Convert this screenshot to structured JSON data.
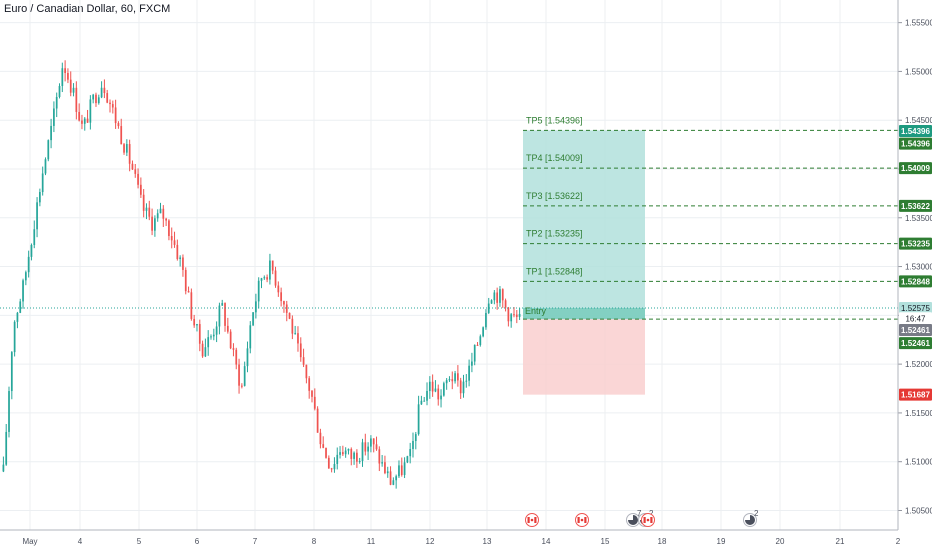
{
  "header": {
    "title": "Euro / Canadian Dollar, 60, FXCM"
  },
  "colors": {
    "up": "#26a69a",
    "down": "#ef5350",
    "grid": "#eceff2",
    "tp_line": "#2e7d32",
    "tp_badge": "#2e7d32",
    "tp_top_badge": "#1e9a80",
    "profit_zone": "#b2e0dc",
    "loss_zone": "#f9cfcf",
    "entry_zone": "#7ccdbf",
    "current_price_line": "#26a69a",
    "stop_badge": "#e53935",
    "gray_badge": "#787b86"
  },
  "chart_data": {
    "type": "candlestick",
    "symbol": "Euro / Canadian Dollar",
    "interval": "60",
    "source": "FXCM",
    "x_ticks": [
      "May",
      "4",
      "5",
      "6",
      "7",
      "8",
      "11",
      "12",
      "13",
      "14",
      "15",
      "18",
      "19",
      "20",
      "21",
      "2"
    ],
    "y_ticks": [
      "1.55500",
      "1.55000",
      "1.54500",
      "1.54000",
      "1.53500",
      "1.53000",
      "1.52500",
      "1.52000",
      "1.51500",
      "1.51000",
      "1.50500"
    ],
    "ylim": [
      1.503,
      1.5565
    ],
    "price_path": [
      1.509,
      1.524,
      1.528,
      1.534,
      1.54,
      1.545,
      1.551,
      1.548,
      1.544,
      1.547,
      1.549,
      1.546,
      1.543,
      1.54,
      1.536,
      1.5345,
      1.5355,
      1.533,
      1.53,
      1.525,
      1.5215,
      1.523,
      1.526,
      1.5215,
      1.5175,
      1.525,
      1.529,
      1.53,
      1.527,
      1.524,
      1.52,
      1.517,
      1.512,
      1.5095,
      1.5115,
      1.5105,
      1.511,
      1.512,
      1.51,
      1.508,
      1.509,
      1.5105,
      1.516,
      1.518,
      1.5165,
      1.519,
      1.5175,
      1.5195,
      1.523,
      1.5275,
      1.527,
      1.525,
      1.5245
    ],
    "position": {
      "entry": 1.52461,
      "entry_label": "Entry",
      "stop": 1.51687,
      "targets": [
        {
          "label": "TP1 [1.52848]",
          "price": 1.52848
        },
        {
          "label": "TP2 [1.53235]",
          "price": 1.53235
        },
        {
          "label": "TP3 [1.53622]",
          "price": 1.53622
        },
        {
          "label": "TP4 [1.54009]",
          "price": 1.54009
        },
        {
          "label": "TP5 [1.54396]",
          "price": 1.54396
        }
      ]
    },
    "current_price": 1.52575
  },
  "price_labels": [
    {
      "text": "1.54396",
      "price": 1.5439,
      "kind": "tp_top"
    },
    {
      "text": "1.54396",
      "price": 1.5426,
      "kind": "tp"
    },
    {
      "text": "1.54009",
      "price": 1.54009,
      "kind": "tp"
    },
    {
      "text": "1.53622",
      "price": 1.53622,
      "kind": "tp"
    },
    {
      "text": "1.53235",
      "price": 1.53235,
      "kind": "tp"
    },
    {
      "text": "1.52848",
      "price": 1.52848,
      "kind": "tp"
    },
    {
      "text": "1.52575",
      "price": 1.52575,
      "kind": "current"
    },
    {
      "text": "16:47",
      "price": 1.5247,
      "kind": "time"
    },
    {
      "text": "1.52461",
      "price": 1.5235,
      "kind": "gray"
    },
    {
      "text": "1.52461",
      "price": 1.52215,
      "kind": "tp"
    },
    {
      "text": "1.51687",
      "price": 1.51687,
      "kind": "stop"
    }
  ],
  "events": [
    {
      "icon": "canada-flag-icon",
      "badge": ""
    },
    {
      "icon": "canada-flag-icon",
      "badge": ""
    },
    {
      "icon": "earnings-icon",
      "badge": "7"
    },
    {
      "icon": "earnings-icon",
      "badge": "2"
    },
    {
      "icon": "canada-flag-icon",
      "badge": ""
    },
    {
      "icon": "earnings-icon",
      "badge": "2"
    }
  ]
}
